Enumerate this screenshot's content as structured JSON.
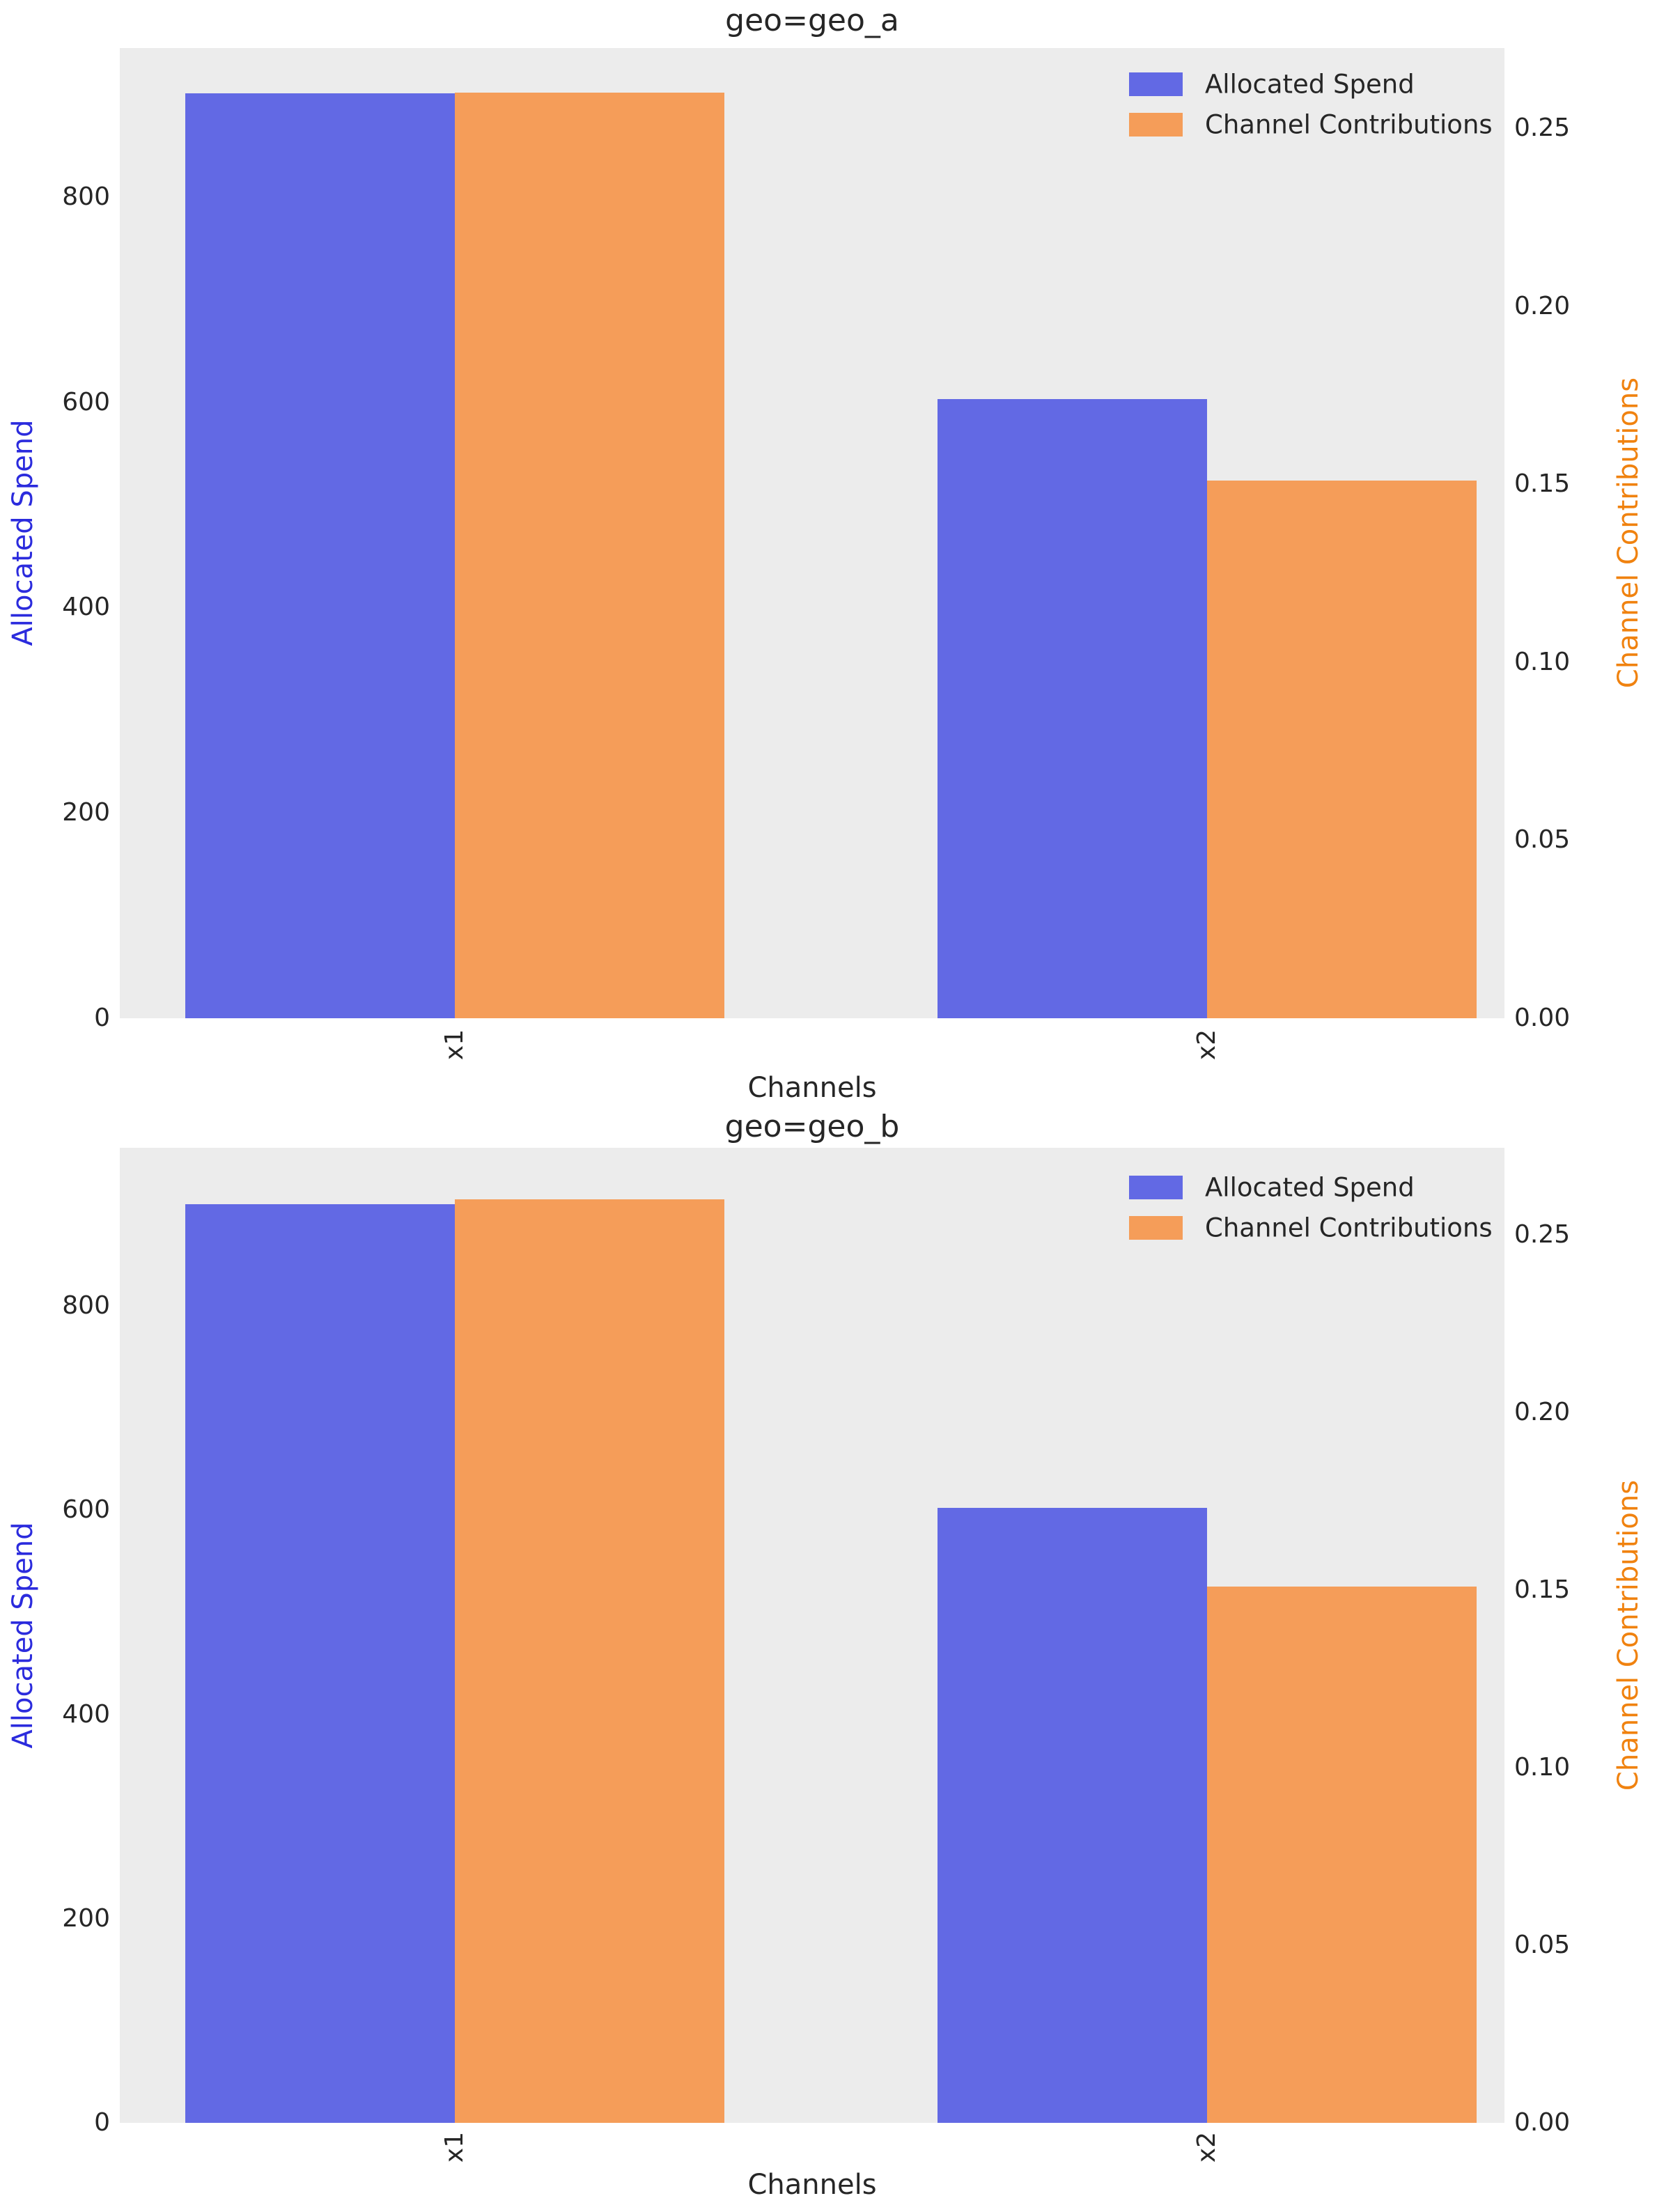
{
  "colors": {
    "spend": "#6269e4",
    "contribution": "#f59d59",
    "spend_axis_label": "#2b2bdd",
    "contribution_axis_label": "#f0820f",
    "plot_background": "#ececec",
    "text": "#262626",
    "page_background": "#ffffff"
  },
  "chart_data": [
    {
      "type": "bar",
      "title": "geo=geo_a",
      "categories": [
        "x1",
        "x2"
      ],
      "xlabel": "Channels",
      "ylabel_left": "Allocated Spend",
      "ylabel_right": "Channel Contributions",
      "series": [
        {
          "name": "Allocated Spend",
          "axis": "left",
          "color_key": "spend",
          "values": [
            901,
            603
          ]
        },
        {
          "name": "Channel Contributions",
          "axis": "right",
          "color_key": "contribution",
          "values": [
            0.26,
            0.151
          ]
        }
      ],
      "left_ticks": [
        0,
        200,
        400,
        600,
        800
      ],
      "left_tick_labels": [
        "0",
        "200",
        "400",
        "600",
        "800"
      ],
      "right_ticks": [
        0,
        0.05,
        0.1,
        0.15,
        0.2,
        0.25
      ],
      "right_tick_labels": [
        "0.00",
        "0.05",
        "0.10",
        "0.15",
        "0.20",
        "0.25"
      ],
      "left_ylim": [
        0,
        945
      ],
      "right_ylim": [
        0,
        0.2725
      ],
      "legend_position": "upper right",
      "grid": false
    },
    {
      "type": "bar",
      "title": "geo=geo_b",
      "categories": [
        "x1",
        "x2"
      ],
      "xlabel": "Channels",
      "ylabel_left": "Allocated Spend",
      "ylabel_right": "Channel Contributions",
      "series": [
        {
          "name": "Allocated Spend",
          "axis": "left",
          "color_key": "spend",
          "values": [
            900,
            602
          ]
        },
        {
          "name": "Channel Contributions",
          "axis": "right",
          "color_key": "contribution",
          "values": [
            0.26,
            0.151
          ]
        }
      ],
      "left_ticks": [
        0,
        200,
        400,
        600,
        800
      ],
      "left_tick_labels": [
        "0",
        "200",
        "400",
        "600",
        "800"
      ],
      "right_ticks": [
        0,
        0.05,
        0.1,
        0.15,
        0.2,
        0.25
      ],
      "right_tick_labels": [
        "0.00",
        "0.05",
        "0.10",
        "0.15",
        "0.20",
        "0.25"
      ],
      "left_ylim": [
        0,
        955
      ],
      "right_ylim": [
        0,
        0.2745
      ],
      "legend_position": "upper right",
      "grid": false
    }
  ]
}
